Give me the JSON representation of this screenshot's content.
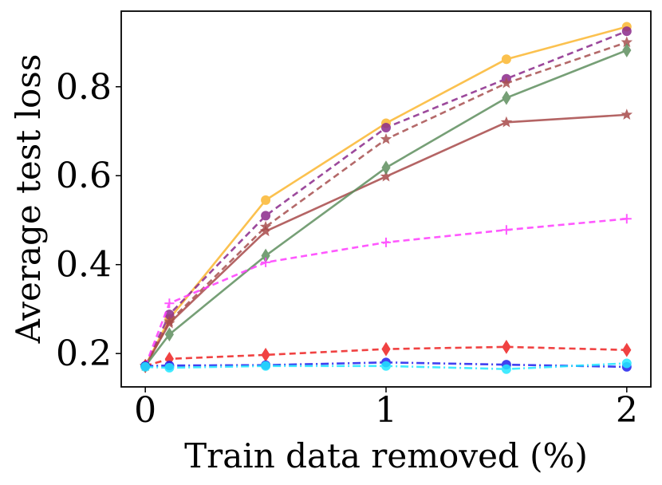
{
  "chart_data": {
    "type": "line",
    "title": "",
    "xlabel": "Train data removed (%)",
    "ylabel": "Average test loss",
    "xlim": [
      -0.1,
      2.1
    ],
    "ylim": [
      0.125,
      0.97
    ],
    "xticks": [
      0,
      1,
      2
    ],
    "xtick_labels": [
      "0",
      "1",
      "2"
    ],
    "yticks": [
      0.2,
      0.4,
      0.6,
      0.8
    ],
    "ytick_labels": [
      "0.2",
      "0.4",
      "0.6",
      "0.8"
    ],
    "x": [
      0,
      0.1,
      0.5,
      1,
      1.5,
      2
    ],
    "grid": false,
    "legend": "none",
    "series": [
      {
        "name": "orange-solid-circle",
        "color": "#fbb731",
        "dash": "solid",
        "marker": "circle",
        "values": [
          0.172,
          0.278,
          0.545,
          0.718,
          0.862,
          0.935
        ]
      },
      {
        "name": "purple-dashed-circle",
        "color": "#8b2a8b",
        "dash": "dashed",
        "marker": "circle",
        "values": [
          0.172,
          0.288,
          0.51,
          0.708,
          0.818,
          0.925
        ]
      },
      {
        "name": "brown-dashed-star",
        "color": "#a85050",
        "dash": "dashed",
        "marker": "star",
        "values": [
          0.172,
          0.272,
          0.485,
          0.682,
          0.808,
          0.9
        ]
      },
      {
        "name": "brown-solid-star",
        "color": "#a84a4a",
        "dash": "solid",
        "marker": "star",
        "values": [
          0.172,
          0.268,
          0.475,
          0.598,
          0.72,
          0.737
        ]
      },
      {
        "name": "green-solid-diamond",
        "color": "#5f8f5f",
        "dash": "solid",
        "marker": "diamond",
        "values": [
          0.172,
          0.243,
          0.42,
          0.618,
          0.775,
          0.882
        ]
      },
      {
        "name": "magenta-dashed-plus",
        "color": "#ff3cff",
        "dash": "dashed",
        "marker": "plus",
        "values": [
          0.172,
          0.313,
          0.405,
          0.45,
          0.478,
          0.503
        ]
      },
      {
        "name": "red-dashed-diamond",
        "color": "#ee2222",
        "dash": "dashed",
        "marker": "diamond",
        "values": [
          0.172,
          0.188,
          0.197,
          0.21,
          0.215,
          0.208
        ]
      },
      {
        "name": "blue-dashdot-circle",
        "color": "#2020ee",
        "dash": "dashdot",
        "marker": "circle",
        "values": [
          0.172,
          0.173,
          0.174,
          0.18,
          0.175,
          0.17
        ]
      },
      {
        "name": "cyan-dashdot-circle",
        "color": "#22e8ff",
        "dash": "dashdot",
        "marker": "circle",
        "values": [
          0.17,
          0.168,
          0.172,
          0.172,
          0.165,
          0.178
        ]
      }
    ]
  }
}
